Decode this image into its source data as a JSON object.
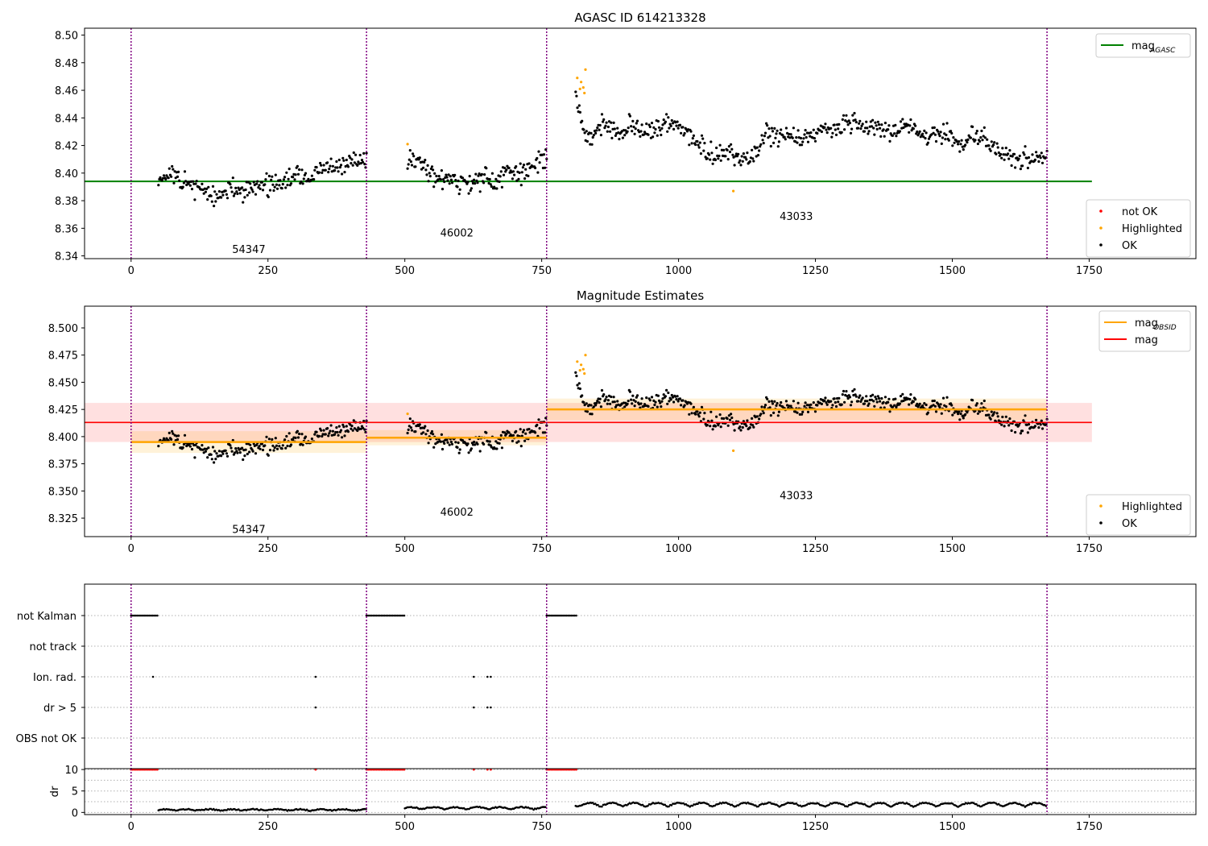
{
  "chart_data": [
    {
      "type": "scatter",
      "title": "AGASC ID 614213328",
      "xlim": [
        -85,
        1945
      ],
      "ylim": [
        8.338,
        8.505
      ],
      "xticks": [
        "0",
        "250",
        "500",
        "750",
        "1000",
        "1250",
        "1500",
        "1750"
      ],
      "yticks": [
        "8.34",
        "8.36",
        "8.38",
        "8.40",
        "8.42",
        "8.44",
        "8.46",
        "8.48",
        "8.50"
      ],
      "obs_boundaries": [
        0,
        430,
        759,
        1673
      ],
      "obs_labels": [
        {
          "text": "54347",
          "x": 215,
          "y": 8.345
        },
        {
          "text": "46002",
          "x": 595,
          "y": 8.357
        },
        {
          "text": "43033",
          "x": 1215,
          "y": 8.369
        }
      ],
      "hlines": [
        {
          "name": "mag_AGASC",
          "y": 8.394,
          "x": [
            -85,
            1755
          ],
          "color": "#008000"
        }
      ],
      "segments": [
        {
          "x0": 50,
          "x1": 430,
          "profile": [
            [
              50,
              8.398
            ],
            [
              100,
              8.394
            ],
            [
              150,
              8.383
            ],
            [
              200,
              8.388
            ],
            [
              260,
              8.392
            ],
            [
              320,
              8.398
            ],
            [
              380,
              8.405
            ],
            [
              430,
              8.41
            ]
          ],
          "spread": 0.009,
          "n": 230,
          "seed": 11
        },
        {
          "x0": 505,
          "x1": 759,
          "profile": [
            [
              505,
              8.412
            ],
            [
              540,
              8.403
            ],
            [
              580,
              8.392
            ],
            [
              640,
              8.394
            ],
            [
              700,
              8.4
            ],
            [
              759,
              8.408
            ]
          ],
          "spread": 0.009,
          "n": 160,
          "seed": 23
        },
        {
          "x0": 812,
          "x1": 1673,
          "profile": [
            [
              812,
              8.455
            ],
            [
              830,
              8.428
            ],
            [
              860,
              8.432
            ],
            [
              950,
              8.432
            ],
            [
              1000,
              8.436
            ],
            [
              1040,
              8.418
            ],
            [
              1100,
              8.412
            ],
            [
              1140,
              8.41
            ],
            [
              1160,
              8.43
            ],
            [
              1200,
              8.426
            ],
            [
              1300,
              8.434
            ],
            [
              1400,
              8.432
            ],
            [
              1500,
              8.425
            ],
            [
              1560,
              8.426
            ],
            [
              1600,
              8.412
            ],
            [
              1673,
              8.41
            ]
          ],
          "spread": 0.009,
          "n": 520,
          "seed": 37
        }
      ],
      "highlighted": [
        [
          505,
          8.421
        ],
        [
          815,
          8.469
        ],
        [
          820,
          8.461
        ],
        [
          822,
          8.466
        ],
        [
          826,
          8.462
        ],
        [
          828,
          8.458
        ],
        [
          830,
          8.475
        ],
        [
          1100,
          8.387
        ]
      ],
      "colors": {
        "ok": "#000000",
        "highlighted": "#ffa500",
        "not_ok": "#ff0000"
      },
      "legends": {
        "upper": [
          {
            "label": "mag",
            "sub": "AGASC",
            "kind": "line",
            "color": "#008000"
          }
        ],
        "lower": [
          {
            "label": "not OK",
            "kind": "dot",
            "color": "#ff0000"
          },
          {
            "label": "Highlighted",
            "kind": "dot",
            "color": "#ffa500"
          },
          {
            "label": "OK",
            "kind": "dot",
            "color": "#000000"
          }
        ]
      }
    },
    {
      "type": "scatter",
      "title": "Magnitude Estimates",
      "xlim": [
        -85,
        1945
      ],
      "ylim": [
        8.308,
        8.52
      ],
      "xticks": [
        "0",
        "250",
        "500",
        "750",
        "1000",
        "1250",
        "1500",
        "1750"
      ],
      "yticks": [
        "8.325",
        "8.350",
        "8.375",
        "8.400",
        "8.425",
        "8.450",
        "8.475",
        "8.500"
      ],
      "obs_boundaries": [
        0,
        430,
        759,
        1673
      ],
      "obs_labels": [
        {
          "text": "54347",
          "x": 215,
          "y": 8.315
        },
        {
          "text": "46002",
          "x": 595,
          "y": 8.331
        },
        {
          "text": "43033",
          "x": 1215,
          "y": 8.346
        }
      ],
      "mag": {
        "y": 8.413,
        "band": [
          8.395,
          8.431
        ],
        "x": [
          -85,
          1755
        ],
        "color": "#ff0000"
      },
      "mag_obsid": [
        {
          "x": [
            0,
            430
          ],
          "y": 8.395,
          "band": [
            8.385,
            8.405
          ]
        },
        {
          "x": [
            430,
            759
          ],
          "y": 8.399,
          "band": [
            8.392,
            8.406
          ]
        },
        {
          "x": [
            759,
            1673
          ],
          "y": 8.425,
          "band": [
            8.415,
            8.435
          ]
        }
      ],
      "mag_obsid_color": "#ffa500",
      "legends": {
        "upper": [
          {
            "label": "mag",
            "sub": "OBSID",
            "kind": "line",
            "color": "#ffa500"
          },
          {
            "label": "mag",
            "sub": "",
            "kind": "line",
            "color": "#ff0000"
          }
        ],
        "lower": [
          {
            "label": "Highlighted",
            "kind": "dot",
            "color": "#ffa500"
          },
          {
            "label": "OK",
            "kind": "dot",
            "color": "#000000"
          }
        ]
      }
    },
    {
      "type": "scatter",
      "title": "",
      "xlim": [
        -85,
        1945
      ],
      "flag_rows": [
        "not Kalman",
        "not track",
        "Ion. rad.",
        "dr > 5",
        "OBS not OK"
      ],
      "flags": {
        "not Kalman": [
          [
            0,
            50
          ],
          [
            430,
            500
          ],
          [
            759,
            815
          ]
        ],
        "not track": [],
        "Ion. rad.": [
          [
            40,
            40
          ],
          [
            337,
            337
          ],
          [
            626,
            626
          ],
          [
            651,
            651
          ],
          [
            657,
            657
          ]
        ],
        "dr > 5": [
          [
            337,
            337
          ],
          [
            626,
            626
          ],
          [
            651,
            651
          ],
          [
            657,
            657
          ]
        ],
        "OBS not OK": []
      },
      "obs_boundaries": [
        0,
        430,
        759,
        1673
      ]
    },
    {
      "type": "scatter",
      "title": "",
      "ylabel": "dr",
      "xlim": [
        -85,
        1945
      ],
      "ylim": [
        -0.5,
        10.2
      ],
      "xticks": [
        "0",
        "250",
        "500",
        "750",
        "1000",
        "1250",
        "1500",
        "1750"
      ],
      "yticks": [
        "0",
        "5",
        "10"
      ],
      "clipped_at": 10,
      "clipped": [
        [
          0,
          50
        ],
        [
          430,
          500
        ],
        [
          759,
          815
        ]
      ],
      "clipped_single": [
        337,
        626,
        651,
        657
      ],
      "dr_segments": [
        {
          "x0": 50,
          "x1": 430,
          "level": 0.3,
          "amp": 0.3
        },
        {
          "x0": 500,
          "x1": 759,
          "level": 0.6,
          "amp": 0.5
        },
        {
          "x0": 812,
          "x1": 1673,
          "level": 1.2,
          "amp": 0.9
        }
      ],
      "obs_boundaries": [
        0,
        430,
        759,
        1673
      ]
    }
  ]
}
